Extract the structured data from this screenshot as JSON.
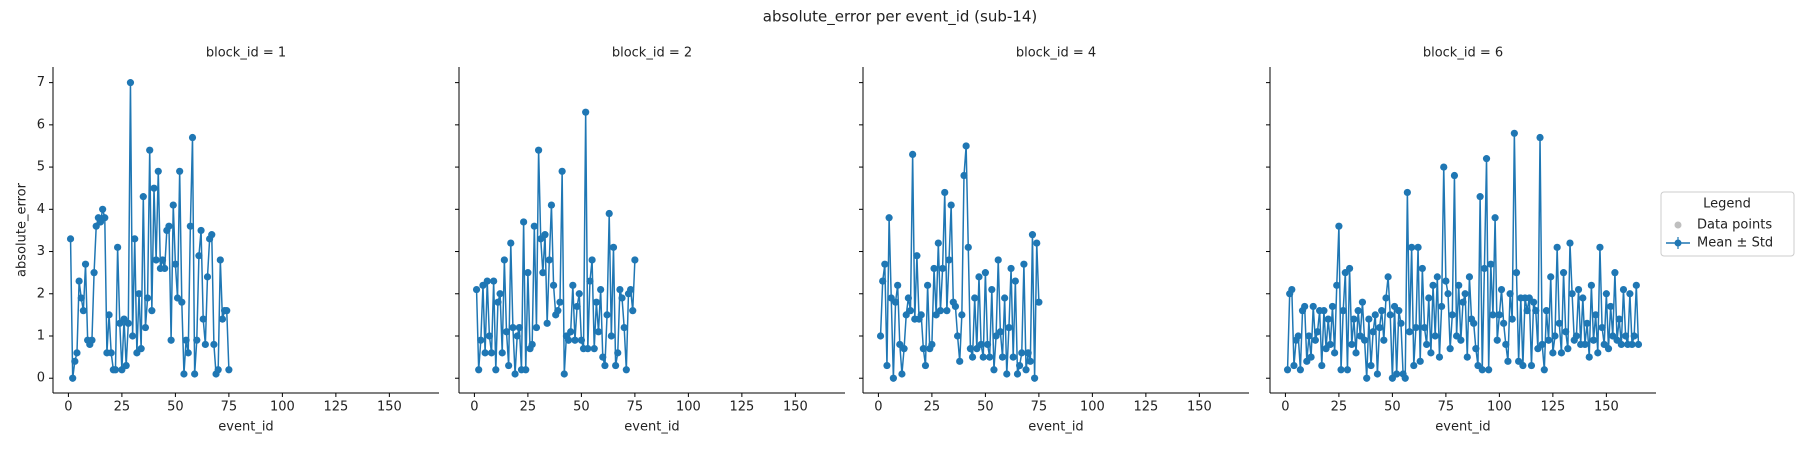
{
  "title": "absolute_error per event_id (sub-14)",
  "legend": {
    "title": "Legend",
    "entries": [
      {
        "label": "Data points",
        "color": "#bfbfbf"
      },
      {
        "label": "Mean ± Std",
        "color": "#1f77b4"
      }
    ]
  },
  "chart_data": [
    {
      "type": "line",
      "title": "block_id = 1",
      "xlabel": "event_id",
      "ylabel": "absolute_error",
      "color": "#1f77b4",
      "x": [
        1,
        2,
        3,
        4,
        5,
        6,
        7,
        8,
        9,
        10,
        11,
        12,
        13,
        14,
        15,
        16,
        17,
        18,
        19,
        20,
        21,
        22,
        23,
        24,
        25,
        26,
        27,
        28,
        29,
        30,
        31,
        32,
        33,
        34,
        35,
        36,
        37,
        38,
        39,
        40,
        41,
        42,
        43,
        44,
        45,
        46,
        47,
        48,
        49,
        50,
        51,
        52,
        53,
        54,
        55,
        56,
        57,
        58,
        59,
        60,
        61,
        62,
        63,
        64,
        65,
        66,
        67,
        68,
        69,
        70,
        71,
        72,
        73,
        74,
        75
      ],
      "values": [
        3.3,
        0.0,
        0.4,
        0.6,
        2.3,
        1.9,
        1.6,
        2.7,
        0.9,
        0.8,
        0.9,
        2.5,
        3.6,
        3.8,
        3.7,
        4.0,
        3.8,
        0.6,
        1.5,
        0.6,
        0.2,
        0.2,
        3.1,
        1.3,
        0.2,
        1.4,
        0.3,
        1.3,
        7.0,
        1.0,
        3.3,
        0.6,
        2.0,
        0.7,
        4.3,
        1.2,
        1.9,
        5.4,
        1.6,
        4.5,
        2.8,
        4.9,
        2.6,
        2.8,
        2.6,
        3.5,
        3.6,
        0.9,
        4.1,
        2.7,
        1.9,
        4.9,
        1.8,
        0.1,
        0.9,
        0.6,
        3.6,
        5.7,
        0.1,
        0.9,
        2.9,
        3.5,
        1.4,
        0.8,
        2.4,
        3.3,
        3.4,
        0.8,
        0.1,
        0.2,
        2.8,
        1.4,
        1.6,
        1.6,
        0.2
      ],
      "xlim": [
        -7.2,
        173.2
      ],
      "ylim": [
        -0.35,
        7.37
      ],
      "xticks": [
        0,
        25,
        50,
        75,
        100,
        125,
        150
      ],
      "yticks": [
        0,
        1,
        2,
        3,
        4,
        5,
        6,
        7
      ]
    },
    {
      "type": "line",
      "title": "block_id = 2",
      "xlabel": "event_id",
      "color": "#1f77b4",
      "x": [
        1,
        2,
        3,
        4,
        5,
        6,
        7,
        8,
        9,
        10,
        11,
        12,
        13,
        14,
        15,
        16,
        17,
        18,
        19,
        20,
        21,
        22,
        23,
        24,
        25,
        26,
        27,
        28,
        29,
        30,
        31,
        32,
        33,
        34,
        35,
        36,
        37,
        38,
        39,
        40,
        41,
        42,
        43,
        44,
        45,
        46,
        47,
        48,
        49,
        50,
        51,
        52,
        53,
        54,
        55,
        56,
        57,
        58,
        59,
        60,
        61,
        62,
        63,
        64,
        65,
        66,
        67,
        68,
        69,
        70,
        71,
        72,
        73,
        74,
        75
      ],
      "values": [
        2.1,
        0.2,
        0.9,
        2.2,
        0.6,
        2.3,
        1.0,
        0.6,
        2.3,
        0.2,
        1.8,
        2.0,
        0.6,
        2.8,
        1.1,
        0.3,
        3.2,
        1.2,
        0.1,
        1.0,
        1.2,
        0.2,
        3.7,
        0.2,
        2.5,
        0.7,
        0.8,
        3.6,
        1.2,
        5.4,
        3.3,
        2.5,
        3.4,
        1.3,
        2.8,
        4.1,
        2.2,
        1.5,
        1.6,
        1.8,
        4.9,
        0.1,
        1.0,
        0.9,
        1.1,
        2.2,
        0.9,
        1.7,
        2.0,
        0.9,
        0.7,
        6.3,
        0.7,
        2.3,
        2.8,
        0.7,
        1.8,
        1.1,
        2.1,
        0.5,
        0.3,
        1.5,
        3.9,
        1.0,
        3.1,
        0.3,
        0.6,
        2.1,
        1.9,
        1.2,
        0.2,
        2.0,
        2.1,
        1.6,
        2.8
      ],
      "xlim": [
        -7.2,
        173.2
      ],
      "ylim": [
        -0.35,
        7.37
      ],
      "xticks": [
        0,
        25,
        50,
        75,
        100,
        125,
        150
      ],
      "yticks": [
        0,
        1,
        2,
        3,
        4,
        5,
        6,
        7
      ]
    },
    {
      "type": "line",
      "title": "block_id = 4",
      "xlabel": "event_id",
      "color": "#1f77b4",
      "x": [
        1,
        2,
        3,
        4,
        5,
        6,
        7,
        8,
        9,
        10,
        11,
        12,
        13,
        14,
        15,
        16,
        17,
        18,
        19,
        20,
        21,
        22,
        23,
        24,
        25,
        26,
        27,
        28,
        29,
        30,
        31,
        32,
        33,
        34,
        35,
        36,
        37,
        38,
        39,
        40,
        41,
        42,
        43,
        44,
        45,
        46,
        47,
        48,
        49,
        50,
        51,
        52,
        53,
        54,
        55,
        56,
        57,
        58,
        59,
        60,
        61,
        62,
        63,
        64,
        65,
        66,
        67,
        68,
        69,
        70,
        71,
        72,
        73,
        74,
        75
      ],
      "values": [
        1.0,
        2.3,
        2.7,
        0.3,
        3.8,
        1.9,
        0.0,
        1.8,
        2.2,
        0.8,
        0.1,
        0.7,
        1.5,
        1.9,
        1.6,
        5.3,
        1.4,
        2.9,
        1.4,
        1.5,
        0.7,
        0.3,
        2.2,
        0.7,
        0.8,
        2.6,
        1.5,
        3.2,
        1.6,
        2.6,
        4.4,
        1.6,
        2.8,
        4.1,
        1.8,
        1.7,
        1.0,
        0.4,
        1.5,
        4.8,
        5.5,
        3.1,
        0.7,
        0.5,
        1.9,
        0.7,
        2.4,
        0.8,
        0.5,
        2.5,
        0.8,
        0.5,
        2.1,
        0.2,
        1.0,
        2.8,
        1.1,
        0.5,
        1.9,
        0.1,
        1.2,
        2.6,
        0.5,
        2.3,
        0.1,
        0.3,
        0.6,
        2.7,
        0.2,
        0.6,
        0.4,
        3.4,
        0.0,
        3.2,
        1.8
      ],
      "xlim": [
        -7.2,
        173.2
      ],
      "ylim": [
        -0.35,
        7.37
      ],
      "xticks": [
        0,
        25,
        50,
        75,
        100,
        125,
        150
      ],
      "yticks": [
        0,
        1,
        2,
        3,
        4,
        5,
        6,
        7
      ]
    },
    {
      "type": "line",
      "title": "block_id = 6",
      "xlabel": "event_id",
      "color": "#1f77b4",
      "x": [
        1,
        2,
        3,
        4,
        5,
        6,
        7,
        8,
        9,
        10,
        11,
        12,
        13,
        14,
        15,
        16,
        17,
        18,
        19,
        20,
        21,
        22,
        23,
        24,
        25,
        26,
        27,
        28,
        29,
        30,
        31,
        32,
        33,
        34,
        35,
        36,
        37,
        38,
        39,
        40,
        41,
        42,
        43,
        44,
        45,
        46,
        47,
        48,
        49,
        50,
        51,
        52,
        53,
        54,
        55,
        56,
        57,
        58,
        59,
        60,
        61,
        62,
        63,
        64,
        65,
        66,
        67,
        68,
        69,
        70,
        71,
        72,
        73,
        74,
        75,
        76,
        77,
        78,
        79,
        80,
        81,
        82,
        83,
        84,
        85,
        86,
        87,
        88,
        89,
        90,
        91,
        92,
        93,
        94,
        95,
        96,
        97,
        98,
        99,
        100,
        101,
        102,
        103,
        104,
        105,
        106,
        107,
        108,
        109,
        110,
        111,
        112,
        113,
        114,
        115,
        116,
        117,
        118,
        119,
        120,
        121,
        122,
        123,
        124,
        125,
        126,
        127,
        128,
        129,
        130,
        131,
        132,
        133,
        134,
        135,
        136,
        137,
        138,
        139,
        140,
        141,
        142,
        143,
        144,
        145,
        146,
        147,
        148,
        149,
        150,
        151,
        152,
        153,
        154,
        155,
        156,
        157,
        158,
        159,
        160,
        161,
        162,
        163,
        164,
        165
      ],
      "values": [
        0.2,
        2.0,
        2.1,
        0.3,
        0.9,
        1.0,
        0.2,
        1.6,
        1.7,
        0.4,
        1.0,
        0.5,
        1.7,
        0.9,
        1.1,
        1.6,
        0.3,
        1.6,
        0.7,
        1.4,
        0.8,
        1.7,
        0.6,
        2.2,
        3.6,
        0.2,
        1.6,
        2.5,
        0.2,
        2.6,
        0.8,
        1.4,
        0.6,
        1.6,
        1.0,
        1.8,
        0.9,
        0.0,
        1.4,
        0.3,
        1.1,
        1.5,
        0.1,
        1.2,
        1.6,
        0.9,
        1.9,
        2.4,
        1.5,
        0.0,
        1.7,
        0.1,
        1.6,
        1.3,
        0.1,
        0.0,
        4.4,
        1.1,
        3.1,
        0.3,
        1.2,
        3.1,
        0.4,
        2.6,
        1.2,
        0.8,
        1.9,
        0.6,
        2.2,
        1.0,
        2.4,
        0.5,
        1.7,
        5.0,
        2.3,
        2.0,
        0.7,
        1.5,
        4.8,
        1.0,
        2.2,
        0.9,
        1.8,
        2.0,
        0.5,
        2.4,
        1.4,
        1.3,
        0.7,
        0.3,
        4.3,
        0.2,
        2.6,
        5.2,
        0.2,
        2.7,
        1.5,
        3.8,
        0.9,
        1.5,
        2.1,
        1.3,
        0.8,
        0.4,
        2.0,
        1.4,
        5.8,
        2.5,
        0.4,
        1.9,
        0.3,
        1.9,
        1.6,
        1.9,
        0.3,
        1.8,
        1.6,
        0.7,
        5.7,
        0.8,
        0.2,
        1.6,
        0.9,
        2.4,
        0.6,
        1.0,
        3.1,
        1.3,
        0.6,
        2.5,
        1.1,
        0.7,
        3.2,
        2.0,
        0.9,
        1.0,
        2.1,
        0.8,
        1.9,
        0.8,
        1.3,
        0.5,
        2.2,
        0.9,
        1.5,
        0.6,
        3.1,
        1.2,
        0.8,
        2.0,
        0.7,
        1.7,
        1.0,
        2.5,
        0.9,
        1.4,
        0.8,
        2.1,
        1.0,
        0.8,
        2.0,
        0.8,
        1.0,
        2.2,
        0.8
      ],
      "xlim": [
        -7.2,
        173.2
      ],
      "ylim": [
        -0.35,
        7.37
      ],
      "xticks": [
        0,
        25,
        50,
        75,
        100,
        125,
        150
      ],
      "yticks": [
        0,
        1,
        2,
        3,
        4,
        5,
        6,
        7
      ]
    }
  ]
}
